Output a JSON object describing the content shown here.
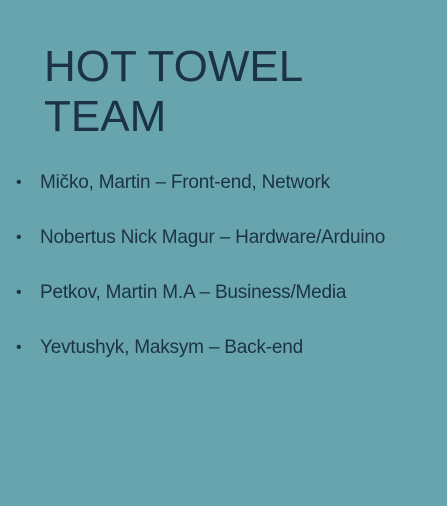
{
  "title": {
    "line1": "HOT TOWEL",
    "line2": "TEAM"
  },
  "members": [
    {
      "text": "Mičko, Martin – Front-end, Network"
    },
    {
      "text": "Nobertus Nick Magur – Hardware/Arduino"
    },
    {
      "text": "Petkov, Martin M.A – Business/Media"
    },
    {
      "text": "Yevtushyk, Maksym – Back-end"
    }
  ],
  "bullet_glyph": "•",
  "colors": {
    "background": "#68a4ad",
    "text": "#1c3247"
  }
}
